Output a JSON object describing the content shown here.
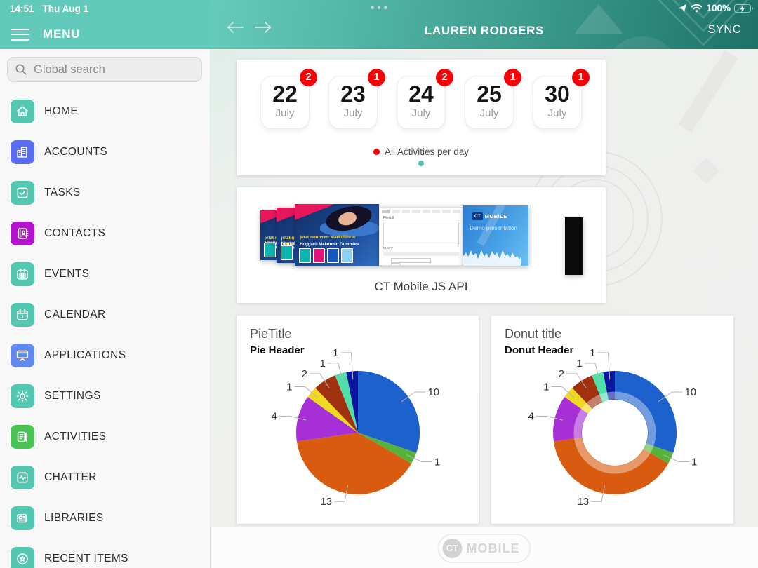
{
  "status_bar": {
    "time": "14:51",
    "date": "Thu Aug 1",
    "battery": "100%"
  },
  "sidebar": {
    "menu_label": "MENU",
    "search_placeholder": "Global search",
    "items": [
      {
        "label": "HOME",
        "icon": "home-icon",
        "color": "#54c7b1"
      },
      {
        "label": "ACCOUNTS",
        "icon": "buildings-icon",
        "color": "#5a6cf0"
      },
      {
        "label": "TASKS",
        "icon": "checkbox-icon",
        "color": "#54c7b1"
      },
      {
        "label": "CONTACTS",
        "icon": "contact-book-icon",
        "color": "#b313cc"
      },
      {
        "label": "EVENTS",
        "icon": "calendar-grid-icon",
        "color": "#54c7b1"
      },
      {
        "label": "CALENDAR",
        "icon": "calendar-day-icon",
        "color": "#54c7b1"
      },
      {
        "label": "APPLICATIONS",
        "icon": "presentation-icon",
        "color": "#6189ef"
      },
      {
        "label": "SETTINGS",
        "icon": "gear-icon",
        "color": "#54c7b1"
      },
      {
        "label": "ACTIVITIES",
        "icon": "notes-pencil-icon",
        "color": "#49c353"
      },
      {
        "label": "CHATTER",
        "icon": "pulse-icon",
        "color": "#54c7b1"
      },
      {
        "label": "LIBRARIES",
        "icon": "newspaper-icon",
        "color": "#54c7b1"
      },
      {
        "label": "RECENT ITEMS",
        "icon": "star-circle-icon",
        "color": "#54c7b1"
      }
    ]
  },
  "header": {
    "title": "LAUREN RODGERS",
    "sync_label": "SYNC"
  },
  "calendar_card": {
    "legend": "All Activities per day",
    "legend_color": "#f80007",
    "days": [
      {
        "day": "22",
        "month": "July",
        "badge": "2"
      },
      {
        "day": "23",
        "month": "July",
        "badge": "1"
      },
      {
        "day": "24",
        "month": "July",
        "badge": "2"
      },
      {
        "day": "25",
        "month": "July",
        "badge": "1"
      },
      {
        "day": "30",
        "month": "July",
        "badge": "1"
      }
    ]
  },
  "carousel_card": {
    "caption": "CT Mobile JS API",
    "ad_line1": "jetzt neu vom Marktführer",
    "ad_line2": "Hoggar® Melatonin Gummies",
    "web_label1": "Result",
    "web_label2": "query",
    "slide_logo_ct": "CT",
    "slide_logo_mobile": "MOBILE",
    "slide_subtitle": "Demo presentation"
  },
  "footer": {
    "logo_ct": "CT",
    "logo_mobile": "MOBILE"
  },
  "chart_data": [
    {
      "type": "pie",
      "title": "PieTitle",
      "header": "Pie Header",
      "values": [
        10,
        1,
        13,
        4,
        1,
        2,
        1,
        1
      ],
      "colors": [
        "#1d61cc",
        "#57b23c",
        "#d85b10",
        "#a62fd6",
        "#f0d91e",
        "#a03210",
        "#4fe0aa",
        "#0b16a0"
      ],
      "labels_shown": [
        "10",
        "1",
        "13",
        "4",
        "1",
        "2",
        "1",
        "1"
      ],
      "legend_position": "none"
    },
    {
      "type": "donut",
      "title": "Donut title",
      "header": "Donut Header",
      "values": [
        10,
        1,
        13,
        4,
        1,
        2,
        1,
        1
      ],
      "colors": [
        "#1d61cc",
        "#57b23c",
        "#d85b10",
        "#a62fd6",
        "#f0d91e",
        "#a03210",
        "#4fe0aa",
        "#0b16a0"
      ],
      "labels_shown": [
        "10",
        "1",
        "13",
        "4",
        "1",
        "2",
        "1",
        "1"
      ],
      "legend_position": "none"
    }
  ]
}
